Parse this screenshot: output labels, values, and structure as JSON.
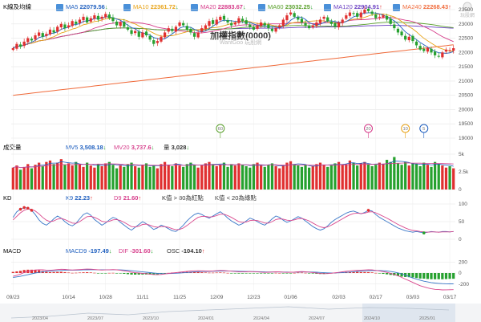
{
  "header": {
    "k_label": "K線及均線",
    "ma": [
      {
        "label": "MA5",
        "value": "22079.56",
        "arrow": "↓",
        "color": "#1f5fbf"
      },
      {
        "label": "MA10",
        "value": "22361.72",
        "arrow": "↓",
        "color": "#e8a317"
      },
      {
        "label": "MA20",
        "value": "22883.67",
        "arrow": "↓",
        "color": "#d63c8a"
      },
      {
        "label": "MA60",
        "value": "23032.25",
        "arrow": "↓",
        "color": "#5aa02c"
      },
      {
        "label": "MA120",
        "value": "22904.91",
        "arrow": "↑",
        "color": "#6a3fc2"
      },
      {
        "label": "MA240",
        "value": "22268.43",
        "arrow": "↑",
        "color": "#f06a3a"
      }
    ]
  },
  "logo": {
    "text": "玩股網"
  },
  "chart_title": "加權指數(0000)",
  "watermark": "WantGoo 玩股網",
  "volume_header": {
    "label": "成交量",
    "mv5_label": "MV5",
    "mv5_value": "3,508.18",
    "mv5_arrow": "↓",
    "mv20_label": "MV20",
    "mv20_value": "3,737.6",
    "mv20_arrow": "↓",
    "vol_label": "量",
    "vol_value": "3,028",
    "vol_arrow": "↓"
  },
  "kd_header": {
    "label": "KD",
    "k9_label": "K9",
    "k9_value": "22.23",
    "k9_arrow": "↑",
    "d9_label": "D9",
    "d9_value": "21.60",
    "d9_arrow": "↑",
    "note1": "K值 > 80為紅點",
    "note2": "K值 < 20為綠點"
  },
  "macd_header": {
    "label": "MACD",
    "macd9_label": "MACD9",
    "macd9_value": "-197.49",
    "macd9_arrow": "↓",
    "dif_label": "DIF",
    "dif_value": "-301.60",
    "dif_arrow": "↓",
    "osc_label": "OSC",
    "osc_value": "-104.10",
    "osc_arrow": "↑"
  },
  "colors": {
    "up": "#e03030",
    "down": "#27a12f",
    "k": "#3a78c8",
    "d": "#d9468c",
    "ma240": "#f06a3a",
    "grid": "#e6e6e6"
  },
  "chart_data": {
    "type": "candlestick",
    "title": "加權指數(0000)",
    "price_ylim": [
      19000,
      23500
    ],
    "price_ticks": [
      23500,
      23000,
      22500,
      22000,
      21500,
      21000,
      20500,
      20000,
      19500,
      19000
    ],
    "volume_ticks": [
      "5k",
      "2.5k",
      "0"
    ],
    "kd_ticks": [
      100,
      50,
      0
    ],
    "macd_ticks": [
      200,
      0,
      -200
    ],
    "x_labels": [
      "09/23",
      "10/14",
      "10/28",
      "11/11",
      "11/25",
      "12/09",
      "12/23",
      "01/06",
      "02/03",
      "02/17",
      "03/03",
      "03/17"
    ],
    "x_label_index": [
      0,
      15,
      25,
      35,
      45,
      55,
      65,
      75,
      88,
      98,
      108,
      118
    ],
    "overview_labels": [
      "2023/04",
      "2023/07",
      "2023/10",
      "2024/01",
      "2024/04",
      "2024/07",
      "2024/10",
      "2025/01"
    ],
    "markers": [
      {
        "text": "60",
        "index": 56,
        "color": "#5aa02c"
      },
      {
        "text": "20",
        "index": 96,
        "color": "#d63c8a"
      },
      {
        "text": "10",
        "index": 106,
        "color": "#e8a317"
      },
      {
        "text": "5",
        "index": 111,
        "color": "#1f5fbf"
      }
    ],
    "close": [
      22150,
      22300,
      22200,
      22380,
      22500,
      22420,
      22600,
      22700,
      22550,
      22650,
      22800,
      22700,
      22900,
      23000,
      22850,
      22950,
      23100,
      23000,
      23150,
      23250,
      23050,
      23200,
      23300,
      23150,
      23250,
      23350,
      23200,
      23100,
      22950,
      23050,
      22900,
      22800,
      22650,
      22750,
      22550,
      22700,
      22600,
      22450,
      22300,
      22400,
      22550,
      22700,
      22850,
      22750,
      22900,
      23050,
      22950,
      22800,
      22700,
      22550,
      22700,
      22850,
      22950,
      23100,
      23000,
      23150,
      23250,
      23150,
      23050,
      22950,
      23050,
      23200,
      23100,
      23000,
      22900,
      22800,
      22950,
      23050,
      22950,
      22850,
      22750,
      22850,
      22950,
      23150,
      23300,
      23400,
      23250,
      23150,
      23050,
      22950,
      22850,
      22950,
      23050,
      23150,
      23250,
      23100,
      23000,
      22900,
      23050,
      23150,
      23300,
      23400,
      23350,
      23250,
      23400,
      23500,
      23450,
      23350,
      23200,
      23250,
      23300,
      23150,
      23000,
      22850,
      22700,
      22600,
      22450,
      22550,
      22400,
      22250,
      22100,
      22050,
      22150,
      22000,
      21900,
      21850,
      22000,
      22100,
      22080,
      22150
    ],
    "volume": [
      3.1,
      3.4,
      2.8,
      3.2,
      3.6,
      3.0,
      3.5,
      3.8,
      3.3,
      3.9,
      4.1,
      3.6,
      3.8,
      4.3,
      3.5,
      3.7,
      3.4,
      3.9,
      3.6,
      3.2,
      3.8,
      3.4,
      3.1,
      3.6,
      3.3,
      3.7,
      3.9,
      3.5,
      3.0,
      3.4,
      3.2,
      3.6,
      3.8,
      3.3,
      3.1,
      3.5,
      3.7,
      3.2,
      3.4,
      3.0,
      3.6,
      3.9,
      3.5,
      3.3,
      3.7,
      3.4,
      3.2,
      3.6,
      3.8,
      3.5,
      3.1,
      3.4,
      3.7,
      3.9,
      3.6,
      3.3,
      3.5,
      3.8,
      3.2,
      3.6,
      3.4,
      3.7,
      3.5,
      3.3,
      3.1,
      3.6,
      3.8,
      3.4,
      3.2,
      3.5,
      3.7,
      3.3,
      3.0,
      3.4,
      3.8,
      4.0,
      3.6,
      3.4,
      3.2,
      3.5,
      3.1,
      3.3,
      3.6,
      3.8,
      3.5,
      3.2,
      3.4,
      3.7,
      3.9,
      3.5,
      3.6,
      4.1,
      3.8,
      3.4,
      3.7,
      3.9,
      3.6,
      3.3,
      3.5,
      3.8,
      3.6,
      4.2,
      3.9,
      4.6,
      3.7,
      3.5,
      3.9,
      3.4,
      3.7,
      3.6,
      3.3,
      3.8,
      3.5,
      3.2,
      3.9,
      3.6,
      3.4,
      3.1,
      3.3,
      3.0
    ],
    "k": [
      62,
      78,
      85,
      90,
      88,
      82,
      70,
      55,
      45,
      40,
      48,
      58,
      66,
      60,
      50,
      42,
      38,
      45,
      58,
      70,
      75,
      68,
      56,
      48,
      40,
      46,
      55,
      62,
      58,
      48,
      40,
      32,
      26,
      34,
      42,
      50,
      44,
      36,
      28,
      32,
      40,
      36,
      30,
      24,
      22,
      30,
      40,
      52,
      62,
      70,
      74,
      70,
      64,
      60,
      66,
      72,
      78,
      70,
      60,
      52,
      46,
      40,
      44,
      52,
      60,
      56,
      50,
      44,
      40,
      48,
      58,
      66,
      62,
      54,
      48,
      52,
      58,
      64,
      60,
      52,
      44,
      36,
      30,
      26,
      30,
      38,
      48,
      56,
      62,
      68,
      74,
      78,
      80,
      76,
      72,
      76,
      82,
      80,
      70,
      62,
      56,
      50,
      44,
      38,
      32,
      28,
      24,
      22,
      20,
      22,
      20,
      18,
      20,
      22,
      21,
      20,
      22,
      22,
      21,
      22
    ],
    "d": [
      55,
      65,
      75,
      82,
      86,
      85,
      80,
      72,
      62,
      54,
      50,
      52,
      57,
      59,
      56,
      51,
      46,
      45,
      50,
      57,
      64,
      65,
      62,
      57,
      51,
      49,
      51,
      55,
      56,
      53,
      48,
      42,
      36,
      35,
      37,
      42,
      43,
      40,
      36,
      34,
      36,
      36,
      34,
      30,
      27,
      28,
      32,
      39,
      47,
      55,
      62,
      65,
      65,
      63,
      64,
      67,
      71,
      71,
      67,
      62,
      56,
      50,
      48,
      49,
      53,
      54,
      53,
      50,
      46,
      46,
      50,
      56,
      58,
      57,
      54,
      53,
      55,
      58,
      59,
      56,
      52,
      46,
      40,
      35,
      33,
      35,
      40,
      46,
      52,
      58,
      64,
      69,
      73,
      74,
      73,
      74,
      77,
      78,
      75,
      70,
      65,
      60,
      54,
      48,
      42,
      37,
      32,
      28,
      25,
      24,
      22,
      21,
      20,
      21,
      21,
      20,
      21,
      21,
      21,
      22
    ],
    "dif": [
      -60,
      -40,
      -20,
      10,
      30,
      45,
      55,
      60,
      58,
      52,
      50,
      55,
      62,
      68,
      66,
      60,
      55,
      58,
      62,
      68,
      72,
      70,
      64,
      58,
      54,
      56,
      60,
      62,
      58,
      50,
      40,
      28,
      14,
      6,
      0,
      -6,
      -12,
      -20,
      -28,
      -30,
      -26,
      -18,
      -8,
      0,
      6,
      14,
      22,
      30,
      36,
      40,
      42,
      40,
      38,
      36,
      38,
      42,
      46,
      44,
      40,
      34,
      28,
      22,
      20,
      22,
      26,
      24,
      20,
      16,
      12,
      14,
      18,
      22,
      20,
      16,
      12,
      14,
      18,
      24,
      26,
      22,
      16,
      8,
      0,
      -8,
      -12,
      -10,
      -4,
      4,
      12,
      22,
      32,
      40,
      46,
      50,
      52,
      55,
      58,
      56,
      48,
      38,
      26,
      12,
      -6,
      -26,
      -50,
      -80,
      -110,
      -140,
      -170,
      -200,
      -230,
      -250,
      -270,
      -285,
      -295,
      -300,
      -305,
      -304,
      -302,
      -301
    ],
    "macd": [
      -80,
      -70,
      -60,
      -45,
      -30,
      -15,
      0,
      12,
      22,
      30,
      34,
      38,
      42,
      46,
      50,
      52,
      52,
      53,
      54,
      56,
      58,
      60,
      60,
      60,
      59,
      58,
      58,
      59,
      59,
      57,
      54,
      49,
      42,
      35,
      28,
      21,
      14,
      7,
      0,
      -6,
      -10,
      -11,
      -10,
      -8,
      -5,
      -1,
      4,
      9,
      15,
      20,
      24,
      27,
      29,
      30,
      32,
      34,
      36,
      37,
      38,
      37,
      35,
      32,
      30,
      28,
      27,
      26,
      25,
      23,
      21,
      19,
      19,
      19,
      19,
      18,
      17,
      16,
      16,
      17,
      19,
      19,
      19,
      17,
      14,
      10,
      6,
      3,
      2,
      2,
      4,
      7,
      12,
      18,
      24,
      29,
      34,
      38,
      42,
      45,
      46,
      45,
      41,
      36,
      28,
      17,
      3,
      -15,
      -38,
      -64,
      -90,
      -110,
      -130,
      -148,
      -162,
      -173,
      -182,
      -188,
      -192,
      -195,
      -197,
      -197
    ]
  }
}
